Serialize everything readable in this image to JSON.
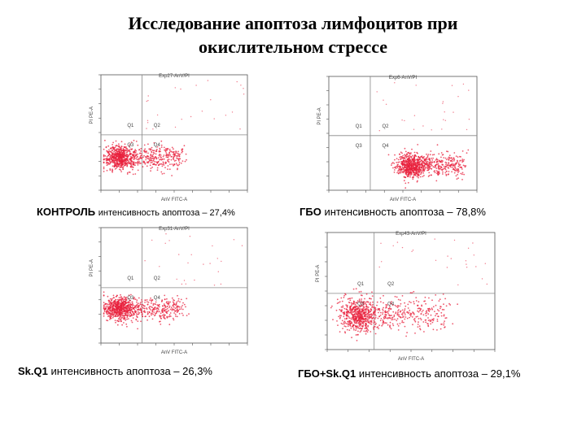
{
  "title": {
    "line1": "Исследование апоптоза лимфоцитов при",
    "line2": "окислительном стрессе"
  },
  "colors": {
    "dots": "#e8203c",
    "axis": "#555555",
    "gate": "#888888"
  },
  "chart_data": [
    {
      "type": "scatter",
      "plot_title": "Exp27-AnV/PI",
      "xlabel": "AnV FITC-A",
      "ylabel": "PI PE-A",
      "quadrants": [
        "Q1",
        "Q2",
        "Q3",
        "Q4"
      ],
      "caption_bold": "КОНТРОЛЬ",
      "caption_text": "интенсивность апоптоза – 27,4%",
      "population": {
        "center_x": 0.12,
        "center_y": 0.28,
        "spread_x": 0.28,
        "spread_y": 0.05,
        "tail_x": 0.55
      }
    },
    {
      "type": "scatter",
      "plot_title": "Exp6-AnV/PI",
      "xlabel": "AnV FITC-A",
      "ylabel": "PI PE-A",
      "quadrants": [
        "Q1",
        "Q2",
        "Q3",
        "Q4"
      ],
      "caption_bold": "ГБО",
      "caption_text": "интенсивность апоптоза – 78,8%",
      "population": {
        "center_x": 0.55,
        "center_y": 0.22,
        "spread_x": 0.55,
        "spread_y": 0.05,
        "tail_x": 0.9
      }
    },
    {
      "type": "scatter",
      "plot_title": "Exp31-AnV/PI",
      "xlabel": "AnV FITC-A",
      "ylabel": "PI PE-A",
      "quadrants": [
        "Q1",
        "Q2",
        "Q3",
        "Q4"
      ],
      "caption_bold": "Sk.Q1",
      "caption_text": "интенсивность апоптоза – 26,3%",
      "population": {
        "center_x": 0.12,
        "center_y": 0.3,
        "spread_x": 0.28,
        "spread_y": 0.05,
        "tail_x": 0.55
      }
    },
    {
      "type": "scatter",
      "plot_title": "Exp43-AnV/PI",
      "xlabel": "AnV FITC-A",
      "ylabel": "PI PE-A",
      "quadrants": [
        "Q1",
        "Q2",
        "Q3",
        "Q4"
      ],
      "caption_bold": "ГБО+Sk.Q1",
      "caption_text": "интенсивность апоптоза – 29,1%",
      "population": {
        "center_x": 0.18,
        "center_y": 0.3,
        "spread_x": 0.35,
        "spread_y": 0.07,
        "tail_x": 0.7
      }
    }
  ]
}
